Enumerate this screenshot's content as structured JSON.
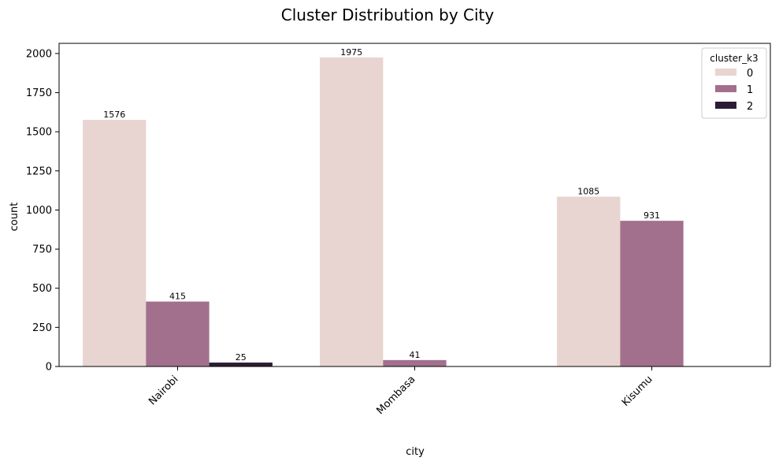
{
  "chart_data": {
    "type": "bar",
    "title": "Cluster Distribution by City",
    "xlabel": "city",
    "ylabel": "count",
    "categories": [
      "Nairobi",
      "Mombasa",
      "Kisumu"
    ],
    "ylim": [
      0,
      2065
    ],
    "yticks": [
      0,
      250,
      500,
      750,
      1000,
      1250,
      1500,
      1750,
      2000
    ],
    "grid": false,
    "legend": {
      "title": "cluster_k3",
      "placement": "top-right"
    },
    "xtick_rotation_deg": 45,
    "series": [
      {
        "name": "0",
        "color": "#e8d4d0",
        "values": [
          1576,
          1975,
          1085
        ]
      },
      {
        "name": "1",
        "color": "#a2708c",
        "values": [
          415,
          41,
          931
        ]
      },
      {
        "name": "2",
        "color": "#2c1d35",
        "values": [
          25,
          null,
          null
        ]
      }
    ],
    "data_labels": [
      [
        "1576",
        "1975",
        "1085"
      ],
      [
        "415",
        "41",
        "931"
      ],
      [
        "25",
        null,
        null
      ]
    ]
  }
}
